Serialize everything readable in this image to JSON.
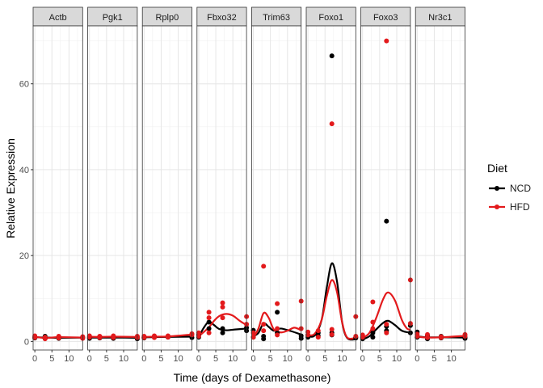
{
  "chart_data": {
    "type": "scatter",
    "facet_type": "small-multiples",
    "xlabel": "Time (days of Dexamethasone)",
    "ylabel": "Relative Expression",
    "xlim": [
      -0.5,
      14
    ],
    "ylim": [
      -2,
      73.5
    ],
    "x_ticks": [
      0,
      5,
      10
    ],
    "y_ticks": [
      0,
      20,
      40,
      60
    ],
    "x_tick_labels": [
      "0",
      "5",
      "10"
    ],
    "y_tick_labels": [
      "0",
      "20",
      "40",
      "60"
    ],
    "grid": true,
    "legend": {
      "title": "Diet",
      "position": "right",
      "entries": [
        {
          "name": "NCD",
          "color": "#000000"
        },
        {
          "name": "HFD",
          "color": "#e31a1c"
        }
      ]
    },
    "facets": [
      {
        "name": "Actb",
        "points": {
          "NCD": [
            [
              0,
              1.0
            ],
            [
              0,
              0.8
            ],
            [
              3,
              0.8
            ],
            [
              3,
              1.2
            ],
            [
              7,
              0.7
            ],
            [
              7,
              1.0
            ],
            [
              14,
              0.8
            ],
            [
              14,
              1.0
            ]
          ],
          "HFD": [
            [
              0,
              1.3
            ],
            [
              0,
              0.9
            ],
            [
              3,
              0.6
            ],
            [
              3,
              1.0
            ],
            [
              7,
              1.2
            ],
            [
              7,
              0.8
            ],
            [
              14,
              1.1
            ],
            [
              14,
              0.7
            ]
          ]
        },
        "smooth": {
          "NCD": [
            [
              0,
              1.0
            ],
            [
              3,
              0.9
            ],
            [
              7,
              0.85
            ],
            [
              14,
              0.9
            ]
          ],
          "HFD": [
            [
              0,
              1.1
            ],
            [
              3,
              0.8
            ],
            [
              7,
              1.0
            ],
            [
              14,
              0.9
            ]
          ]
        }
      },
      {
        "name": "Pgk1",
        "points": {
          "NCD": [
            [
              0,
              1.0
            ],
            [
              0,
              0.7
            ],
            [
              3,
              1.1
            ],
            [
              3,
              0.8
            ],
            [
              7,
              1.0
            ],
            [
              7,
              0.7
            ],
            [
              14,
              1.0
            ],
            [
              14,
              0.6
            ]
          ],
          "HFD": [
            [
              0,
              1.3
            ],
            [
              0,
              1.0
            ],
            [
              3,
              1.2
            ],
            [
              3,
              0.9
            ],
            [
              7,
              1.3
            ],
            [
              7,
              0.9
            ],
            [
              14,
              1.2
            ],
            [
              14,
              0.9
            ]
          ]
        },
        "smooth": {
          "NCD": [
            [
              0,
              0.9
            ],
            [
              3,
              0.9
            ],
            [
              7,
              0.9
            ],
            [
              14,
              0.85
            ]
          ],
          "HFD": [
            [
              0,
              1.1
            ],
            [
              3,
              1.05
            ],
            [
              7,
              1.1
            ],
            [
              14,
              1.05
            ]
          ]
        }
      },
      {
        "name": "Rplp0",
        "points": {
          "NCD": [
            [
              0,
              1.0
            ],
            [
              0,
              0.8
            ],
            [
              3,
              1.1
            ],
            [
              7,
              1.0
            ],
            [
              7,
              1.2
            ],
            [
              14,
              0.9
            ]
          ],
          "HFD": [
            [
              0,
              1.2
            ],
            [
              0,
              0.9
            ],
            [
              3,
              1.3
            ],
            [
              3,
              0.9
            ],
            [
              7,
              1.3
            ],
            [
              7,
              1.0
            ],
            [
              14,
              1.8
            ],
            [
              14,
              1.5
            ]
          ]
        },
        "smooth": {
          "NCD": [
            [
              0,
              0.95
            ],
            [
              3,
              1.0
            ],
            [
              7,
              1.05
            ],
            [
              14,
              1.1
            ]
          ],
          "HFD": [
            [
              0,
              1.05
            ],
            [
              3,
              1.1
            ],
            [
              7,
              1.15
            ],
            [
              14,
              1.6
            ]
          ]
        }
      },
      {
        "name": "Fbxo32",
        "points": {
          "NCD": [
            [
              0,
              1.0
            ],
            [
              0,
              1.5
            ],
            [
              3,
              4.5
            ],
            [
              3,
              3.0
            ],
            [
              7,
              2.0
            ],
            [
              7,
              3.0
            ],
            [
              14,
              3.2
            ],
            [
              14,
              2.5
            ]
          ],
          "HFD": [
            [
              0,
              2.0
            ],
            [
              0,
              1.2
            ],
            [
              3,
              6.8
            ],
            [
              3,
              5.5
            ],
            [
              3,
              2.0
            ],
            [
              7,
              9.0
            ],
            [
              7,
              8.0
            ],
            [
              7,
              5.5
            ],
            [
              14,
              5.8
            ],
            [
              14,
              4.0
            ]
          ]
        },
        "smooth": {
          "NCD": [
            [
              0,
              1.0
            ],
            [
              1.5,
              3.2
            ],
            [
              3,
              4.6
            ],
            [
              4.5,
              3.8
            ],
            [
              6,
              2.9
            ],
            [
              8,
              2.6
            ],
            [
              11,
              2.8
            ],
            [
              14,
              3.0
            ]
          ],
          "HFD": [
            [
              0,
              1.2
            ],
            [
              1.5,
              2.2
            ],
            [
              3,
              3.3
            ],
            [
              4.5,
              4.8
            ],
            [
              6,
              5.9
            ],
            [
              8,
              6.4
            ],
            [
              10,
              6.0
            ],
            [
              12,
              4.8
            ],
            [
              14,
              3.8
            ]
          ]
        }
      },
      {
        "name": "Trim63",
        "points": {
          "NCD": [
            [
              0,
              2.6
            ],
            [
              0,
              1.0
            ],
            [
              3,
              1.2
            ],
            [
              3,
              0.6
            ],
            [
              7,
              6.8
            ],
            [
              7,
              2.0
            ],
            [
              14,
              1.3
            ],
            [
              14,
              0.7
            ]
          ],
          "HFD": [
            [
              0,
              2.0
            ],
            [
              0,
              1.0
            ],
            [
              3,
              17.5
            ],
            [
              3,
              4.0
            ],
            [
              3,
              2.5
            ],
            [
              7,
              8.8
            ],
            [
              7,
              3.0
            ],
            [
              7,
              1.5
            ],
            [
              14,
              9.4
            ],
            [
              14,
              3.0
            ]
          ]
        },
        "smooth": {
          "NCD": [
            [
              0,
              1.2
            ],
            [
              1.5,
              2.0
            ],
            [
              3,
              4.2
            ],
            [
              4.5,
              3.4
            ],
            [
              6,
              2.5
            ],
            [
              8,
              3.0
            ],
            [
              11,
              2.4
            ],
            [
              14,
              1.6
            ]
          ],
          "HFD": [
            [
              0,
              0.8
            ],
            [
              1.5,
              3.0
            ],
            [
              3,
              6.6
            ],
            [
              4.5,
              5.5
            ],
            [
              6,
              2.8
            ],
            [
              8,
              2.1
            ],
            [
              10,
              2.5
            ],
            [
              12,
              3.2
            ],
            [
              14,
              2.6
            ]
          ]
        }
      },
      {
        "name": "Foxo1",
        "points": {
          "NCD": [
            [
              0,
              1.0
            ],
            [
              0,
              1.5
            ],
            [
              3,
              2.0
            ],
            [
              3,
              1.3
            ],
            [
              7,
              66.5
            ],
            [
              7,
              2.0
            ],
            [
              7,
              1.5
            ],
            [
              14,
              1.0
            ],
            [
              14,
              0.8
            ]
          ],
          "HFD": [
            [
              0,
              2.2
            ],
            [
              0,
              1.5
            ],
            [
              3,
              2.5
            ],
            [
              3,
              1.0
            ],
            [
              7,
              50.7
            ],
            [
              7,
              2.8
            ],
            [
              7,
              1.6
            ],
            [
              14,
              5.8
            ],
            [
              14,
              1.2
            ]
          ]
        },
        "smooth": {
          "NCD": [
            [
              0,
              1.2
            ],
            [
              2,
              1.4
            ],
            [
              4,
              5.0
            ],
            [
              5.5,
              12.5
            ],
            [
              7,
              18.2
            ],
            [
              8.5,
              14.0
            ],
            [
              10,
              4.5
            ],
            [
              11.5,
              0.8
            ],
            [
              14,
              0.5
            ]
          ],
          "HFD": [
            [
              0,
              1.4
            ],
            [
              2,
              1.8
            ],
            [
              4,
              5.0
            ],
            [
              5.5,
              10.5
            ],
            [
              7,
              14.3
            ],
            [
              8.5,
              11.5
            ],
            [
              10,
              4.5
            ],
            [
              11.5,
              0.9
            ],
            [
              14,
              0.8
            ]
          ]
        }
      },
      {
        "name": "Foxo3",
        "points": {
          "NCD": [
            [
              0,
              1.0
            ],
            [
              0,
              0.6
            ],
            [
              3,
              2.0
            ],
            [
              3,
              1.0
            ],
            [
              7,
              28.0
            ],
            [
              7,
              3.5
            ],
            [
              7,
              2.5
            ],
            [
              14,
              3.7
            ],
            [
              14,
              2.0
            ]
          ],
          "HFD": [
            [
              0,
              1.5
            ],
            [
              0,
              1.0
            ],
            [
              3,
              9.2
            ],
            [
              3,
              4.5
            ],
            [
              3,
              3.0
            ],
            [
              7,
              70.0
            ],
            [
              7,
              4.0
            ],
            [
              7,
              2.0
            ],
            [
              14,
              14.3
            ],
            [
              14,
              4.2
            ]
          ]
        },
        "smooth": {
          "NCD": [
            [
              0,
              0.5
            ],
            [
              2,
              1.2
            ],
            [
              4,
              2.8
            ],
            [
              6,
              4.3
            ],
            [
              7.5,
              4.8
            ],
            [
              9.5,
              3.8
            ],
            [
              11.5,
              2.5
            ],
            [
              14,
              2.0
            ]
          ],
          "HFD": [
            [
              0,
              0.8
            ],
            [
              2,
              2.0
            ],
            [
              4,
              5.5
            ],
            [
              6,
              9.8
            ],
            [
              7.5,
              11.4
            ],
            [
              9.5,
              9.5
            ],
            [
              11.5,
              5.0
            ],
            [
              13,
              3.0
            ],
            [
              14,
              2.8
            ]
          ]
        }
      },
      {
        "name": "Nr3c1",
        "points": {
          "NCD": [
            [
              0,
              2.2
            ],
            [
              0,
              1.0
            ],
            [
              3,
              1.3
            ],
            [
              3,
              0.6
            ],
            [
              7,
              1.2
            ],
            [
              7,
              0.8
            ],
            [
              14,
              1.0
            ],
            [
              14,
              0.7
            ]
          ],
          "HFD": [
            [
              0,
              1.7
            ],
            [
              0,
              1.2
            ],
            [
              3,
              1.6
            ],
            [
              3,
              0.9
            ],
            [
              7,
              1.1
            ],
            [
              7,
              0.9
            ],
            [
              14,
              1.6
            ],
            [
              14,
              1.2
            ]
          ]
        },
        "smooth": {
          "NCD": [
            [
              0,
              1.2
            ],
            [
              3,
              0.95
            ],
            [
              7,
              0.95
            ],
            [
              14,
              0.9
            ]
          ],
          "HFD": [
            [
              0,
              1.1
            ],
            [
              3,
              0.9
            ],
            [
              7,
              0.95
            ],
            [
              14,
              1.3
            ]
          ]
        }
      }
    ]
  }
}
